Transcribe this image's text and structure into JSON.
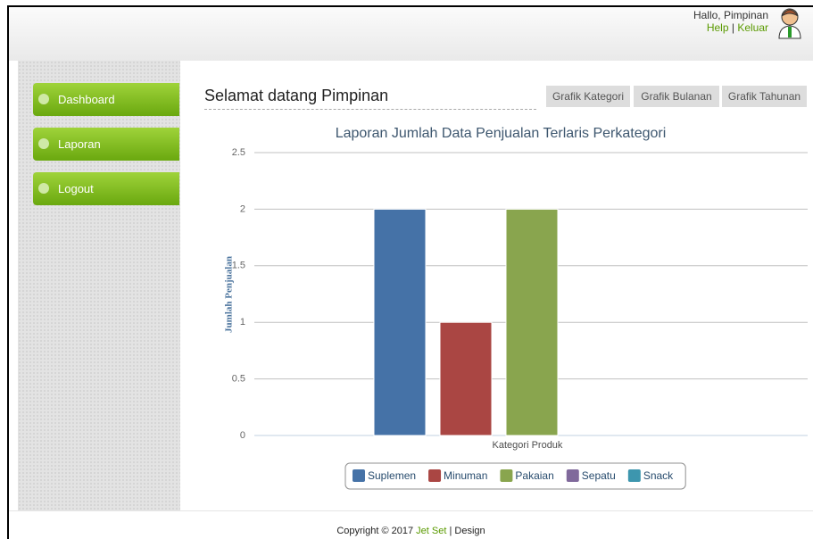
{
  "header": {
    "greeting": "Hallo, Pimpinan",
    "help": "Help",
    "separator": "|",
    "logout": "Keluar"
  },
  "menu": [
    "Dashboard",
    "Laporan",
    "Logout"
  ],
  "content": {
    "heading": "Selamat datang Pimpinan",
    "buttons": [
      "Grafik Kategori",
      "Grafik Bulanan",
      "Grafik Tahunan"
    ]
  },
  "chart_data": {
    "type": "bar",
    "title": "Laporan Jumlah Data Penjualan Terlaris Perkategori",
    "x_label": "Kategori Produk",
    "y_label": "Jumlah Penjualan",
    "categories": [
      null
    ],
    "series": [
      {
        "name": "Suplemen",
        "color": "#4572A7",
        "values": [
          2
        ]
      },
      {
        "name": "Minuman",
        "color": "#AA4643",
        "values": [
          1
        ]
      },
      {
        "name": "Pakaian",
        "color": "#89A54E",
        "values": [
          2
        ]
      },
      {
        "name": "Sepatu",
        "color": "#80699B",
        "values": [
          0
        ]
      },
      {
        "name": "Snack",
        "color": "#3D96AE",
        "values": [
          0
        ]
      }
    ],
    "ylim": [
      0,
      2.5
    ],
    "yticks": [
      0,
      0.5,
      1,
      1.5,
      2,
      2.5
    ],
    "grid": true,
    "legend": "bottom"
  },
  "footer": {
    "copyright": "Copyright © 2017",
    "brand": "Jet Set",
    "suffix": "| Design"
  }
}
